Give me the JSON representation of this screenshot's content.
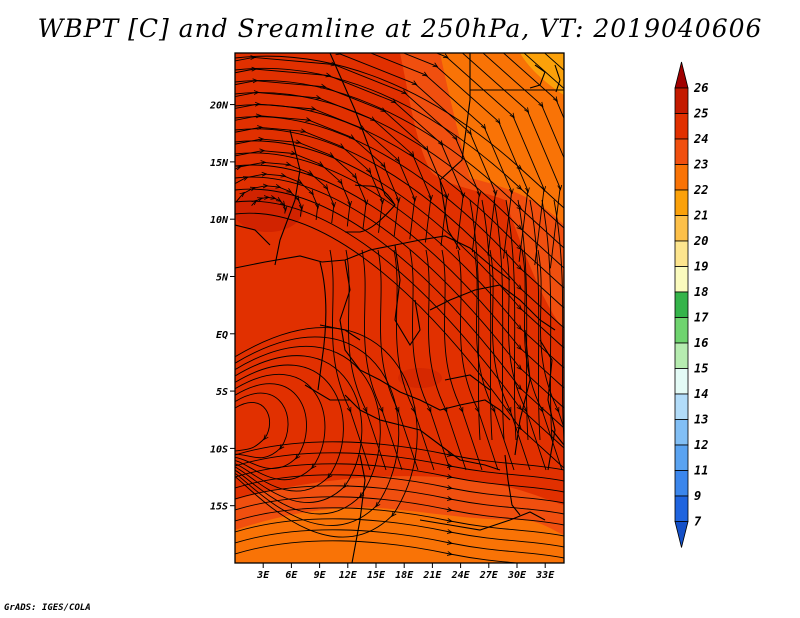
{
  "title": "WBPT [C] and Sreamline at 250hPa, VT: 2019040606",
  "credit": "GrADS: IGES/COLA",
  "map": {
    "lat_range": [
      -20,
      24.5
    ],
    "lon_range": [
      0,
      35
    ],
    "lat_ticks": [
      {
        "value": 20,
        "label": "20N"
      },
      {
        "value": 15,
        "label": "15N"
      },
      {
        "value": 10,
        "label": "10N"
      },
      {
        "value": 5,
        "label": "5N"
      },
      {
        "value": 0,
        "label": "EQ"
      },
      {
        "value": -5,
        "label": "5S"
      },
      {
        "value": -10,
        "label": "10S"
      },
      {
        "value": -15,
        "label": "15S"
      }
    ],
    "lon_ticks": [
      {
        "value": 3,
        "label": "3E"
      },
      {
        "value": 6,
        "label": "6E"
      },
      {
        "value": 9,
        "label": "9E"
      },
      {
        "value": 12,
        "label": "12E"
      },
      {
        "value": 15,
        "label": "15E"
      },
      {
        "value": 18,
        "label": "18E"
      },
      {
        "value": 21,
        "label": "21E"
      },
      {
        "value": 24,
        "label": "24E"
      },
      {
        "value": 27,
        "label": "27E"
      },
      {
        "value": 30,
        "label": "30E"
      },
      {
        "value": 33,
        "label": "33E"
      }
    ],
    "field": "wet-bulb potential temperature",
    "dominant_value_range": [
      23,
      24
    ]
  },
  "colorbar": {
    "levels": [
      "26",
      "25",
      "24",
      "23",
      "22",
      "21",
      "20",
      "19",
      "18",
      "17",
      "16",
      "15",
      "14",
      "13",
      "12",
      "11",
      "9",
      "7"
    ],
    "colors": [
      "#a00000",
      "#c41a00",
      "#e13000",
      "#f04f0f",
      "#f97306",
      "#fba10a",
      "#fdc049",
      "#fde58e",
      "#fbfbbe",
      "#35b44a",
      "#6fd46f",
      "#b6ecb0",
      "#e4fbf6",
      "#b2dcf9",
      "#82bff5",
      "#5aa3f1",
      "#3b86ec",
      "#1f64df",
      "#1450c8"
    ]
  }
}
